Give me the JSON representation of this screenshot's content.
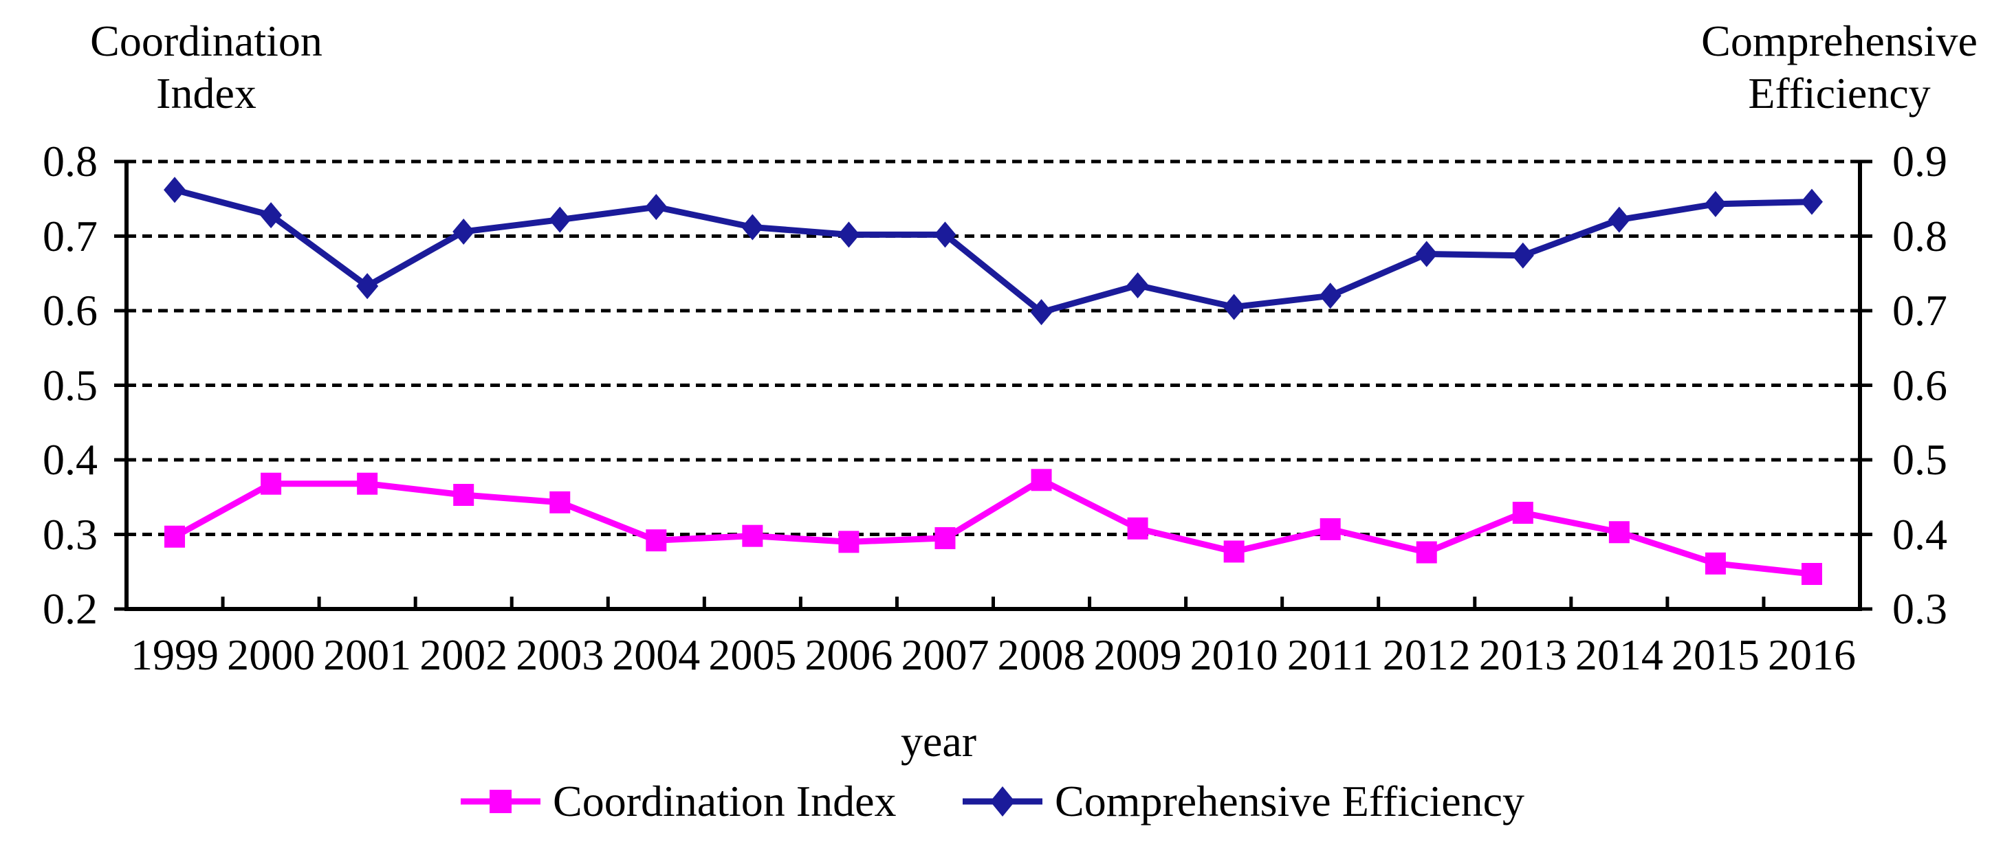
{
  "chart_data": {
    "type": "line",
    "categories": [
      "1999",
      "2000",
      "2001",
      "2002",
      "2003",
      "2004",
      "2005",
      "2006",
      "2007",
      "2008",
      "2009",
      "2010",
      "2011",
      "2012",
      "2013",
      "2014",
      "2015",
      "2016"
    ],
    "series": [
      {
        "name": "Coordination Index",
        "axis": "left",
        "color": "#ff00ff",
        "marker": "square",
        "values": [
          0.297,
          0.368,
          0.368,
          0.353,
          0.343,
          0.292,
          0.298,
          0.29,
          0.295,
          0.373,
          0.308,
          0.277,
          0.307,
          0.276,
          0.329,
          0.303,
          0.261,
          0.247
        ]
      },
      {
        "name": "Comprehensive Efficiency",
        "axis": "right",
        "color": "#1b1b9a",
        "marker": "diamond",
        "values": [
          0.862,
          0.828,
          0.733,
          0.806,
          0.822,
          0.839,
          0.812,
          0.802,
          0.802,
          0.698,
          0.734,
          0.705,
          0.72,
          0.776,
          0.774,
          0.822,
          0.843,
          0.846
        ]
      }
    ],
    "left_axis": {
      "title": "Coordination Index",
      "min": 0.2,
      "max": 0.8,
      "tick_labels": [
        "0.8",
        "0.7",
        "0.6",
        "0.5",
        "0.4",
        "0.3",
        "0.2"
      ]
    },
    "right_axis": {
      "title": "Comprehensive Efficiency",
      "min": 0.3,
      "max": 0.9,
      "tick_labels": [
        "0.9",
        "0.8",
        "0.7",
        "0.6",
        "0.5",
        "0.4",
        "0.3"
      ]
    },
    "x_axis": {
      "title": "year"
    },
    "grid": "horizontal-dashed",
    "legend_position": "bottom-center"
  },
  "axis_titles": {
    "left_line1": "Coordination",
    "left_line2": "Index",
    "right_line1": "Comprehensive",
    "right_line2": "Efficiency"
  },
  "x_title": "year",
  "legend": {
    "items": [
      {
        "label": "Coordination Index",
        "color": "#ff00ff",
        "marker": "square"
      },
      {
        "label": "Comprehensive Efficiency",
        "color": "#1b1b9a",
        "marker": "diamond"
      }
    ]
  },
  "colors": {
    "coordination_series": "#ff00ff",
    "efficiency_series": "#1b1b9a",
    "axis": "#000000",
    "background": "#ffffff"
  }
}
